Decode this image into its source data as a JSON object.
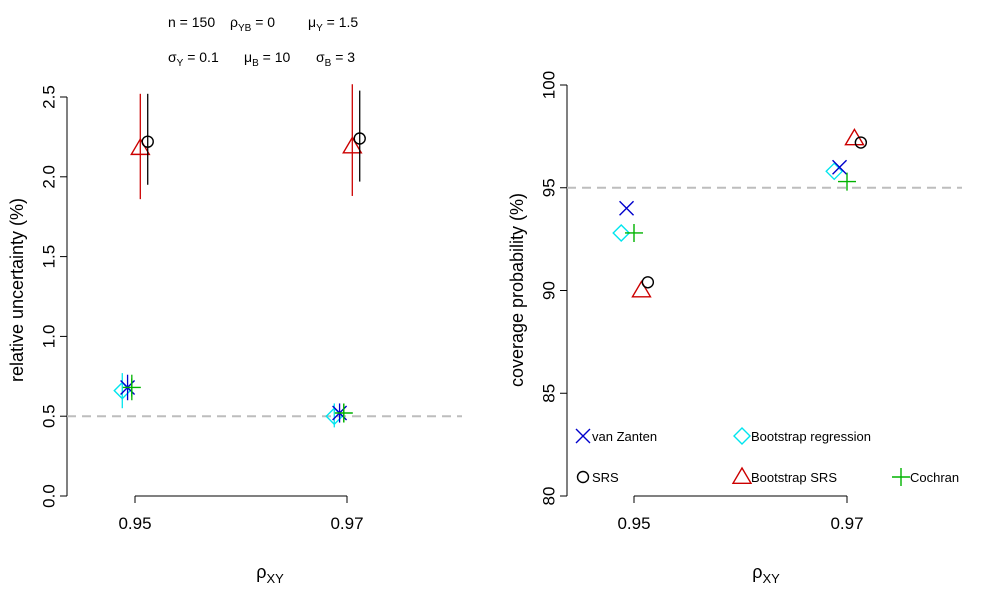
{
  "colors": {
    "van_zanten": "#0000cc",
    "bootstrap_regression": "#00e5ee",
    "srs": "#000000",
    "bootstrap_srs": "#cc0000",
    "cochran": "#00b300",
    "reference_line": "#bdbdbd",
    "axis": "#000000"
  },
  "params": {
    "line1": [
      {
        "sym": "n",
        "sub": "",
        "val": " = 150"
      },
      {
        "sym": "ρ",
        "sub": "YB",
        "val": " = 0"
      },
      {
        "sym": "μ",
        "sub": "Y",
        "val": " = 1.5"
      }
    ],
    "line2": [
      {
        "sym": "σ",
        "sub": "Y",
        "val": " = 0.1"
      },
      {
        "sym": "μ",
        "sub": "B",
        "val": " = 10"
      },
      {
        "sym": "σ",
        "sub": "B",
        "val": " = 3"
      }
    ]
  },
  "chart_data": [
    {
      "type": "scatter",
      "ylabel": "relative uncertainty (%)",
      "xlabel": {
        "sym": "ρ",
        "sub": "XY"
      },
      "x_ticks": [
        "0.95",
        "0.97"
      ],
      "ylim": [
        0,
        2.5
      ],
      "y_ticks": [
        "0.0",
        "0.5",
        "1.0",
        "1.5",
        "2.0",
        "2.5"
      ],
      "reference_line": 0.5,
      "series": [
        {
          "key": "bootstrap_regression",
          "marker": "diamond",
          "points": [
            {
              "x": 0.9488,
              "y": 0.66,
              "lo": 0.55,
              "hi": 0.77
            },
            {
              "x": 0.9688,
              "y": 0.5,
              "lo": 0.43,
              "hi": 0.58
            }
          ]
        },
        {
          "key": "van_zanten",
          "marker": "x",
          "points": [
            {
              "x": 0.9493,
              "y": 0.68,
              "lo": 0.6,
              "hi": 0.76
            },
            {
              "x": 0.9693,
              "y": 0.52,
              "lo": 0.46,
              "hi": 0.58
            }
          ]
        },
        {
          "key": "cochran",
          "marker": "plus",
          "points": [
            {
              "x": 0.9497,
              "y": 0.68,
              "lo": 0.6,
              "hi": 0.76
            },
            {
              "x": 0.9697,
              "y": 0.52,
              "lo": 0.46,
              "hi": 0.58
            }
          ]
        },
        {
          "key": "bootstrap_srs",
          "marker": "triangle",
          "points": [
            {
              "x": 0.9505,
              "y": 2.18,
              "lo": 1.86,
              "hi": 2.52
            },
            {
              "x": 0.9705,
              "y": 2.19,
              "lo": 1.88,
              "hi": 2.58
            }
          ]
        },
        {
          "key": "srs",
          "marker": "circle",
          "points": [
            {
              "x": 0.9512,
              "y": 2.22,
              "lo": 1.95,
              "hi": 2.52
            },
            {
              "x": 0.9712,
              "y": 2.24,
              "lo": 1.97,
              "hi": 2.54
            }
          ]
        }
      ]
    },
    {
      "type": "scatter",
      "ylabel": "coverage probability (%)",
      "xlabel": {
        "sym": "ρ",
        "sub": "XY"
      },
      "x_ticks": [
        "0.95",
        "0.97"
      ],
      "ylim": [
        80,
        100
      ],
      "y_ticks": [
        "80",
        "85",
        "90",
        "95",
        "100"
      ],
      "reference_line": 95,
      "series": [
        {
          "key": "bootstrap_regression",
          "marker": "diamond",
          "points": [
            {
              "x": 0.9488,
              "y": 92.8
            },
            {
              "x": 0.9688,
              "y": 95.8
            }
          ]
        },
        {
          "key": "van_zanten",
          "marker": "x",
          "points": [
            {
              "x": 0.9493,
              "y": 94.0
            },
            {
              "x": 0.9693,
              "y": 96.0
            }
          ]
        },
        {
          "key": "cochran",
          "marker": "plus",
          "points": [
            {
              "x": 0.95,
              "y": 92.8
            },
            {
              "x": 0.97,
              "y": 95.3
            }
          ]
        },
        {
          "key": "bootstrap_srs",
          "marker": "triangle",
          "points": [
            {
              "x": 0.9507,
              "y": 90.0
            },
            {
              "x": 0.9707,
              "y": 97.4
            }
          ]
        },
        {
          "key": "srs",
          "marker": "circle",
          "points": [
            {
              "x": 0.9513,
              "y": 90.4
            },
            {
              "x": 0.9713,
              "y": 97.2
            }
          ]
        }
      ]
    }
  ],
  "legend": [
    {
      "key": "van_zanten",
      "marker": "x",
      "label": "van Zanten"
    },
    {
      "key": "bootstrap_regression",
      "marker": "diamond",
      "label": "Bootstrap regression"
    },
    {
      "key": "srs",
      "marker": "circle",
      "label": "SRS"
    },
    {
      "key": "bootstrap_srs",
      "marker": "triangle",
      "label": "Bootstrap SRS"
    },
    {
      "key": "cochran",
      "marker": "plus",
      "label": "Cochran"
    }
  ]
}
